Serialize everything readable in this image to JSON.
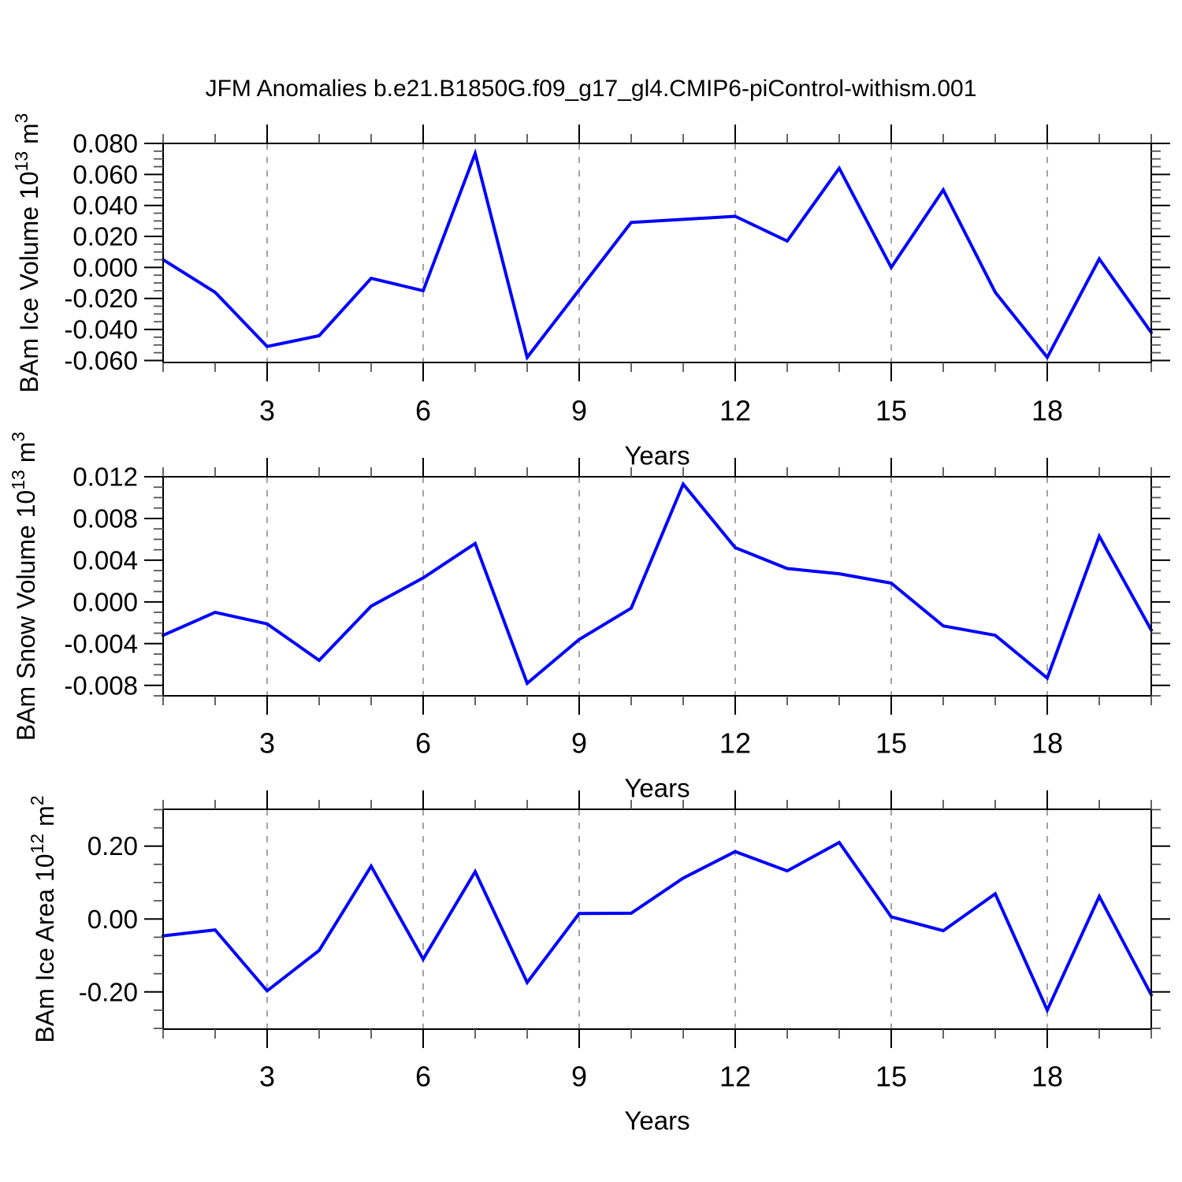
{
  "title": "JFM Anomalies b.e21.B1850G.f09_g17_gl4.CMIP6-piControl-withism.001",
  "colors": {
    "line": "#0000ff",
    "grid": "#999999",
    "axis": "#000000",
    "minor_tick": "#555555",
    "text": "#000000",
    "background": "#ffffff"
  },
  "chart_data": [
    {
      "type": "line",
      "ylabel_plain": "BAm Ice Volume 10^13 m^3",
      "ylabel_parts": {
        "base": "BAm Ice Volume 10",
        "exp": "13",
        "unit": " m",
        "unit_exp": "3"
      },
      "xlabel": "Years",
      "x": [
        1,
        2,
        3,
        4,
        5,
        6,
        7,
        8,
        9,
        10,
        11,
        12,
        13,
        14,
        15,
        16,
        17,
        18,
        19,
        20
      ],
      "values": [
        0.005,
        -0.016,
        -0.051,
        -0.044,
        -0.007,
        -0.015,
        0.0735,
        -0.058,
        -0.0145,
        0.029,
        0.031,
        0.033,
        0.017,
        0.064,
        0.0,
        0.05,
        -0.016,
        -0.058,
        0.0055,
        -0.042
      ],
      "xlim": [
        1,
        20
      ],
      "ylim": [
        -0.0613,
        0.08
      ],
      "yticks": {
        "labels": [
          "0.080",
          "0.060",
          "0.040",
          "0.020",
          "0.000",
          "-0.020",
          "-0.040",
          "-0.060"
        ],
        "values": [
          0.08,
          0.06,
          0.04,
          0.02,
          0.0,
          -0.02,
          -0.04,
          -0.06
        ]
      },
      "yminor_step": 0.005,
      "xticks": {
        "labels": [
          "3",
          "6",
          "9",
          "12",
          "15",
          "18"
        ],
        "values": [
          3,
          6,
          9,
          12,
          15,
          18
        ]
      },
      "xminor_step": 1,
      "grid_at": [
        3,
        6,
        9,
        12,
        15,
        18
      ],
      "grid_on": true,
      "legend": "none"
    },
    {
      "type": "line",
      "ylabel_plain": "BAm Snow Volume 10^13 m^3",
      "ylabel_parts": {
        "base": "BAm Snow Volume 10",
        "exp": "13",
        "unit": " m",
        "unit_exp": "3"
      },
      "xlabel": "Years",
      "x": [
        1,
        2,
        3,
        4,
        5,
        6,
        7,
        8,
        9,
        10,
        11,
        12,
        13,
        14,
        15,
        16,
        17,
        18,
        19,
        20
      ],
      "values": [
        -0.0032,
        -0.001,
        -0.0021,
        -0.0056,
        -0.0004,
        0.0023,
        0.0056,
        -0.0078,
        -0.0036,
        -0.0006,
        0.0113,
        0.0052,
        0.0032,
        0.0027,
        0.0018,
        -0.0023,
        -0.0032,
        -0.0073,
        0.0063,
        -0.0027
      ],
      "xlim": [
        1,
        20
      ],
      "ylim": [
        -0.009,
        0.012
      ],
      "yticks": {
        "labels": [
          "0.012",
          "0.008",
          "0.004",
          "0.000",
          "-0.004",
          "-0.008"
        ],
        "values": [
          0.012,
          0.008,
          0.004,
          0.0,
          -0.004,
          -0.008
        ]
      },
      "yminor_step": 0.001,
      "xticks": {
        "labels": [
          "3",
          "6",
          "9",
          "12",
          "15",
          "18"
        ],
        "values": [
          3,
          6,
          9,
          12,
          15,
          18
        ]
      },
      "xminor_step": 1,
      "grid_at": [
        3,
        6,
        9,
        12,
        15,
        18
      ],
      "grid_on": true,
      "legend": "none"
    },
    {
      "type": "line",
      "ylabel_plain": "BAm Ice Area 10^12 m^2",
      "ylabel_parts": {
        "base": "BAm Ice Area 10",
        "exp": "12",
        "unit": " m",
        "unit_exp": "2"
      },
      "xlabel": "Years",
      "x": [
        1,
        2,
        3,
        4,
        5,
        6,
        7,
        8,
        9,
        10,
        11,
        12,
        13,
        14,
        15,
        16,
        17,
        18,
        19,
        20
      ],
      "values": [
        -0.046,
        -0.03,
        -0.197,
        -0.086,
        0.145,
        -0.11,
        0.13,
        -0.174,
        0.015,
        0.016,
        0.112,
        0.185,
        0.132,
        0.21,
        0.006,
        -0.032,
        0.069,
        -0.25,
        0.062,
        -0.208
      ],
      "xlim": [
        1,
        20
      ],
      "ylim": [
        -0.302,
        0.301
      ],
      "yticks": {
        "labels": [
          "0.20",
          "0.00",
          "-0.20"
        ],
        "values": [
          0.2,
          0.0,
          -0.2
        ]
      },
      "yminor_step": 0.05,
      "xticks": {
        "labels": [
          "3",
          "6",
          "9",
          "12",
          "15",
          "18"
        ],
        "values": [
          3,
          6,
          9,
          12,
          15,
          18
        ]
      },
      "xminor_step": 1,
      "grid_at": [
        3,
        6,
        9,
        12,
        15,
        18
      ],
      "grid_on": true,
      "legend": "none"
    }
  ]
}
